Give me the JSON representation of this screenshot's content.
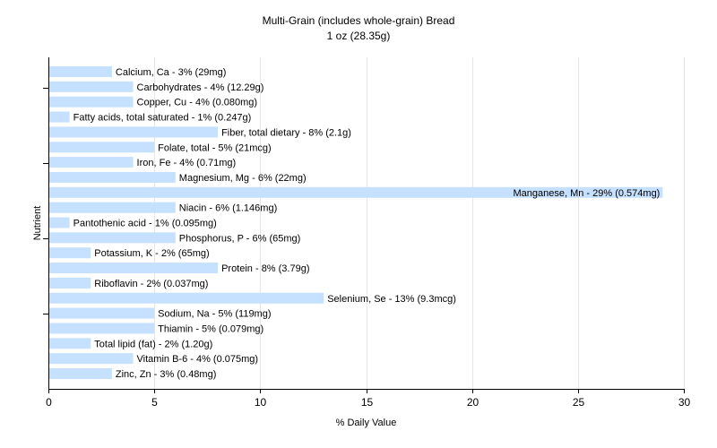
{
  "chart_data": {
    "type": "bar",
    "orientation": "horizontal",
    "title": "Multi-Grain (includes whole-grain) Bread",
    "subtitle": "1 oz (28.35g)",
    "xlabel": "% Daily Value",
    "ylabel": "Nutrient",
    "xlim": [
      0,
      30
    ],
    "xticks": [
      0,
      5,
      10,
      15,
      20,
      25,
      30
    ],
    "grid": "vertical",
    "bar_color": "#c6e0ff",
    "categories": [
      "Calcium, Ca",
      "Carbohydrates",
      "Copper, Cu",
      "Fatty acids, total saturated",
      "Fiber, total dietary",
      "Folate, total",
      "Iron, Fe",
      "Magnesium, Mg",
      "Manganese, Mn",
      "Niacin",
      "Pantothenic acid",
      "Phosphorus, P",
      "Potassium, K",
      "Protein",
      "Riboflavin",
      "Selenium, Se",
      "Sodium, Na",
      "Thiamin",
      "Total lipid (fat)",
      "Vitamin B-6",
      "Zinc, Zn"
    ],
    "values": [
      3,
      4,
      4,
      1,
      8,
      5,
      4,
      6,
      29,
      6,
      1,
      6,
      2,
      8,
      2,
      13,
      5,
      5,
      2,
      4,
      3
    ],
    "labels": [
      "Calcium, Ca - 3% (29mg)",
      "Carbohydrates - 4% (12.29g)",
      "Copper, Cu - 4% (0.080mg)",
      "Fatty acids, total saturated - 1% (0.247g)",
      "Fiber, total dietary - 8% (2.1g)",
      "Folate, total - 5% (21mcg)",
      "Iron, Fe - 4% (0.71mg)",
      "Magnesium, Mg - 6% (22mg)",
      "Manganese, Mn - 29% (0.574mg)",
      "Niacin - 6% (1.146mg)",
      "Pantothenic acid - 1% (0.095mg)",
      "Phosphorus, P - 6% (65mg)",
      "Potassium, K - 2% (65mg)",
      "Protein - 8% (3.79g)",
      "Riboflavin - 2% (0.037mg)",
      "Selenium, Se - 13% (9.3mcg)",
      "Sodium, Na - 5% (119mg)",
      "Thiamin - 5% (0.079mg)",
      "Total lipid (fat) - 2% (1.20g)",
      "Vitamin B-6 - 4% (0.075mg)",
      "Zinc, Zn - 3% (0.48mg)"
    ]
  }
}
